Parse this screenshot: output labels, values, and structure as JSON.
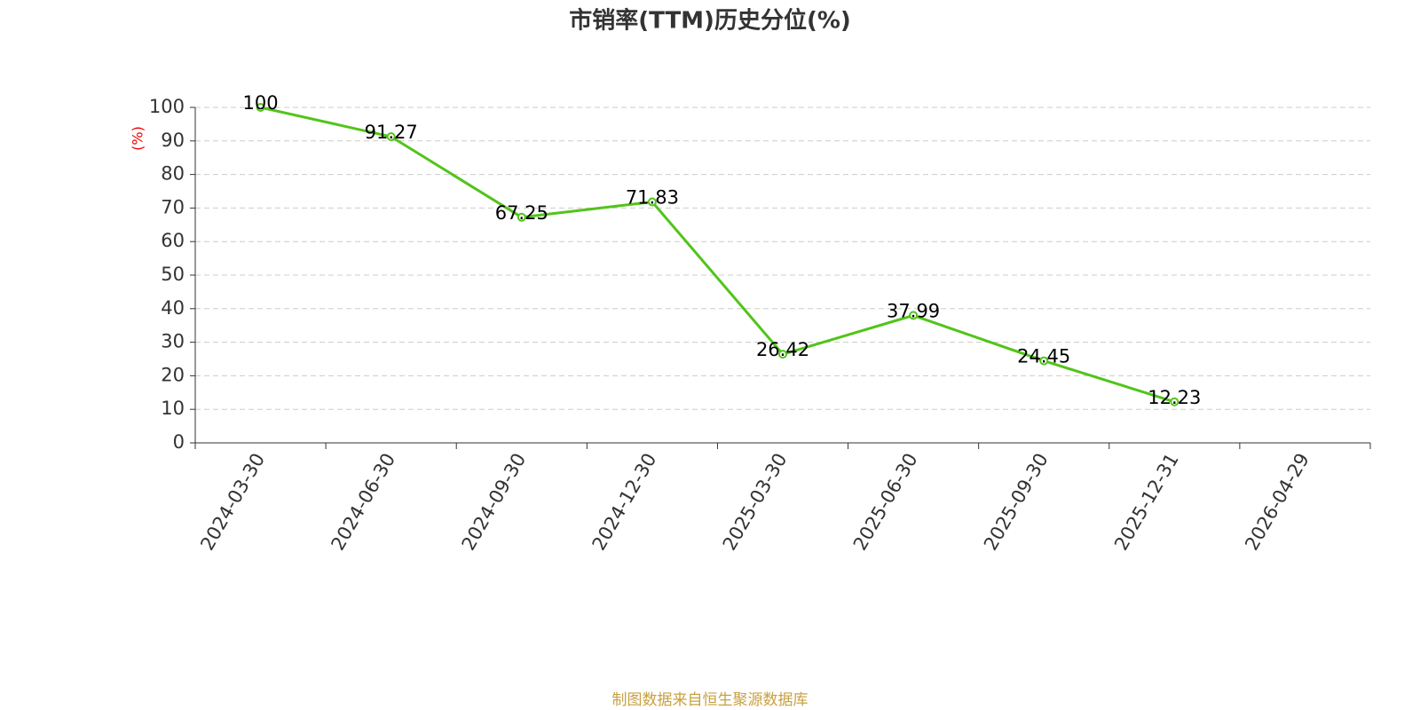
{
  "chart_data": {
    "type": "line",
    "title": "市销率(TTM)历史分位(%)",
    "y_label": "(%)",
    "source": "制图数据来自恒生聚源数据库",
    "categories": [
      "2024-03-30",
      "2024-06-30",
      "2024-09-30",
      "2024-12-30",
      "2025-03-30",
      "2025-06-30",
      "2025-09-30",
      "2025-12-31",
      "2026-04-29"
    ],
    "series": [
      {
        "name": "市销率(TTM)历史分位",
        "color": "#52c41a",
        "values": [
          100,
          91.27,
          67.25,
          71.83,
          26.42,
          37.99,
          24.45,
          12.23,
          null
        ]
      }
    ],
    "ylim": [
      0,
      100
    ],
    "yticks": [
      0,
      10,
      20,
      30,
      40,
      50,
      60,
      70,
      80,
      90,
      100
    ],
    "grid": true
  }
}
